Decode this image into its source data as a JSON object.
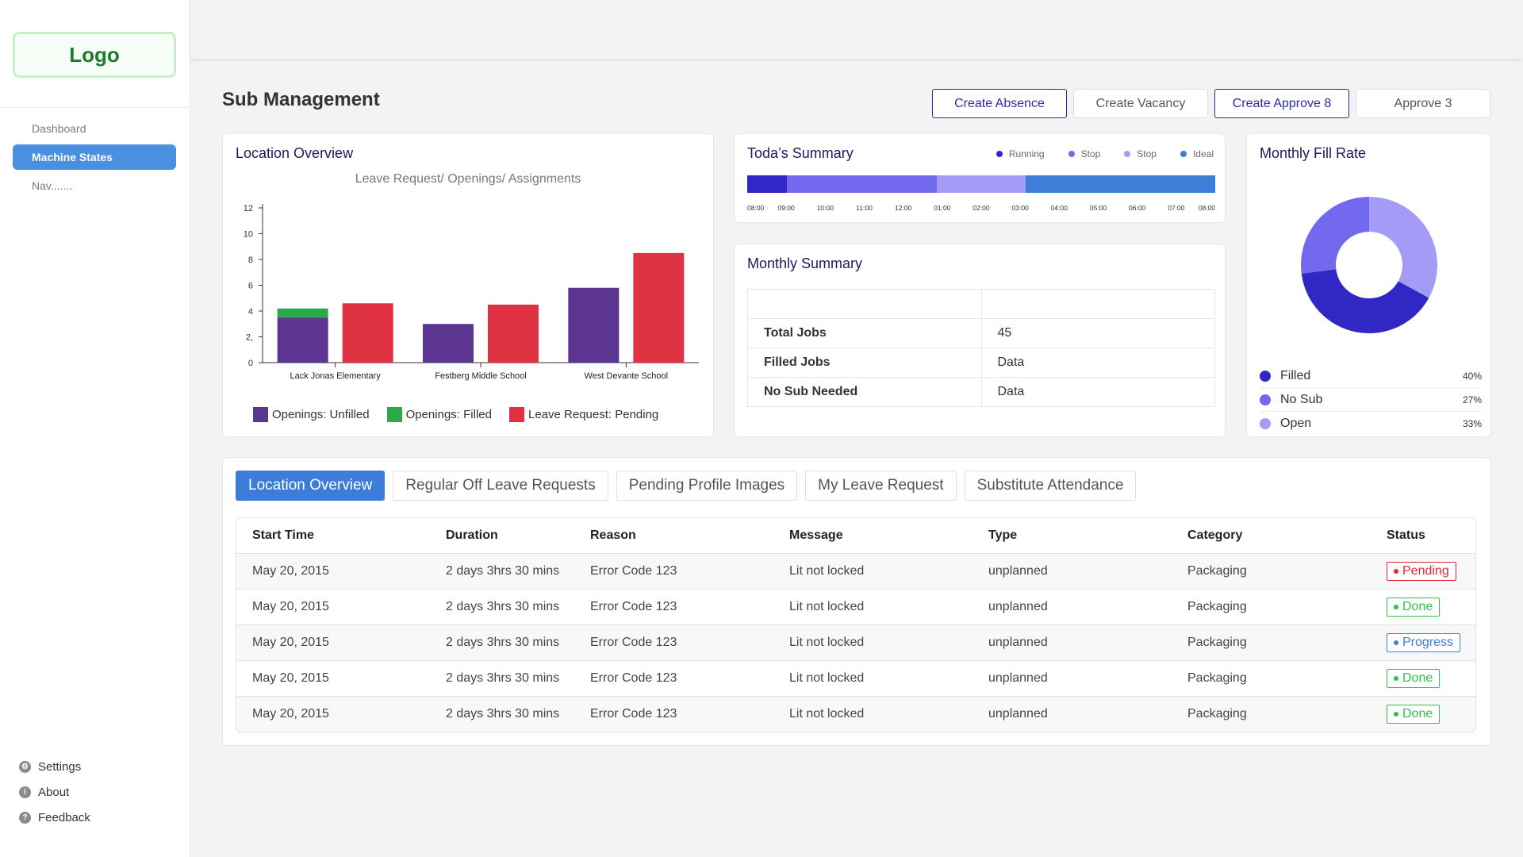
{
  "sidebar": {
    "logo": "Logo",
    "nav": [
      "Dashboard",
      "Machine States",
      "Nav......."
    ],
    "active_index": 1,
    "bottom": [
      {
        "label": "Settings",
        "icon": "gear-icon"
      },
      {
        "label": "About",
        "icon": "info-icon"
      },
      {
        "label": "Feedback",
        "icon": "help-icon"
      }
    ]
  },
  "page": {
    "title": "Sub Management",
    "actions": [
      "Create Absence",
      "Create Vacancy",
      "Create Approve 8",
      "Approve 3"
    ]
  },
  "location_overview": {
    "title": "Location Overview",
    "legend": [
      "Openings: Unfilled",
      "Openings: Filled",
      "Leave Request: Pending"
    ]
  },
  "todays_summary": {
    "title": "Toda’s Summary",
    "legend": [
      {
        "label": "Running",
        "color": "#3027c4"
      },
      {
        "label": "Stop",
        "color": "#7269ee"
      },
      {
        "label": "Stop",
        "color": "#a49bf7"
      },
      {
        "label": "Ideal",
        "color": "#3f7ed8"
      }
    ],
    "segments": [
      {
        "status": "Running",
        "fraction": 0.085,
        "color": "#3027c4"
      },
      {
        "status": "Stop",
        "fraction": 0.32,
        "color": "#7269ee"
      },
      {
        "status": "Stop",
        "fraction": 0.19,
        "color": "#a49bf7"
      },
      {
        "status": "Ideal",
        "fraction": 0.405,
        "color": "#3f7ed8"
      }
    ],
    "ticks": [
      "08:00",
      "09:00",
      "10:00",
      "11:00",
      "12:00",
      "01:00",
      "02:00",
      "03:00",
      "04:00",
      "05:00",
      "06:00",
      "07:00",
      "08:00"
    ]
  },
  "monthly_summary": {
    "title": "Monthly Summary",
    "rows": [
      {
        "label": "",
        "value": ""
      },
      {
        "label": "Total Jobs",
        "value": "45"
      },
      {
        "label": "Filled Jobs",
        "value": "Data"
      },
      {
        "label": "No Sub Needed",
        "value": "Data"
      }
    ]
  },
  "fill_rate": {
    "title": "Monthly Fill Rate",
    "items": [
      {
        "label": "Filled",
        "pct": "40%",
        "color": "#3027c4"
      },
      {
        "label": "No Sub",
        "pct": "27%",
        "color": "#7269ee"
      },
      {
        "label": "Open",
        "pct": "33%",
        "color": "#a49bf7"
      }
    ]
  },
  "tabs": [
    "Location Overview",
    "Regular Off Leave Requests",
    "Pending Profile Images",
    "My Leave Request",
    "Substitute Attendance"
  ],
  "active_tab": 0,
  "table": {
    "columns": [
      "Start Time",
      "Duration",
      "Reason",
      "Message",
      "Type",
      "Category",
      "Status"
    ],
    "rows": [
      [
        "May 20, 2015",
        "2 days 3hrs 30 mins",
        "Error Code 123",
        "Lit not locked",
        "unplanned",
        "Packaging",
        "Pending"
      ],
      [
        "May 20, 2015",
        "2 days 3hrs 30 mins",
        "Error Code 123",
        "Lit not locked",
        "unplanned",
        "Packaging",
        "Done"
      ],
      [
        "May 20, 2015",
        "2 days 3hrs 30 mins",
        "Error Code 123",
        "Lit not locked",
        "unplanned",
        "Packaging",
        "Progress"
      ],
      [
        "May 20, 2015",
        "2 days 3hrs 30 mins",
        "Error Code 123",
        "Lit not locked",
        "unplanned",
        "Packaging",
        "Done"
      ],
      [
        "May 20, 2015",
        "2 days 3hrs 30 mins",
        "Error Code 123",
        "Lit not locked",
        "unplanned",
        "Packaging",
        "Done"
      ]
    ],
    "status_colors": {
      "Pending": "#e0283c",
      "Done": "#2ec24a",
      "Progress": "#3b7dd8"
    }
  },
  "chart_data": [
    {
      "type": "bar",
      "title": "Leave Request/ Openings/ Assignments",
      "categories": [
        "Lack Jonas Elementary",
        "Festberg Middle School",
        "West Devante School"
      ],
      "series": [
        {
          "name": "Openings: Unfilled",
          "values": [
            3.5,
            3.0,
            5.8
          ],
          "color": "#5c3591",
          "stack": "openings"
        },
        {
          "name": "Openings: Filled",
          "values": [
            0.7,
            0,
            0
          ],
          "color": "#2aa84a",
          "stack": "openings"
        },
        {
          "name": "Leave Request: Pending",
          "values": [
            4.6,
            4.5,
            8.5
          ],
          "color": "#df3344",
          "stack": "leave"
        }
      ],
      "yticks": [
        "0",
        "2,",
        "4",
        "6",
        "8",
        "10",
        "12"
      ],
      "ylim": [
        0,
        12
      ]
    },
    {
      "type": "pie",
      "title": "Monthly Fill Rate",
      "categories": [
        "Filled",
        "No Sub",
        "Open"
      ],
      "values": [
        40,
        27,
        33
      ]
    }
  ]
}
